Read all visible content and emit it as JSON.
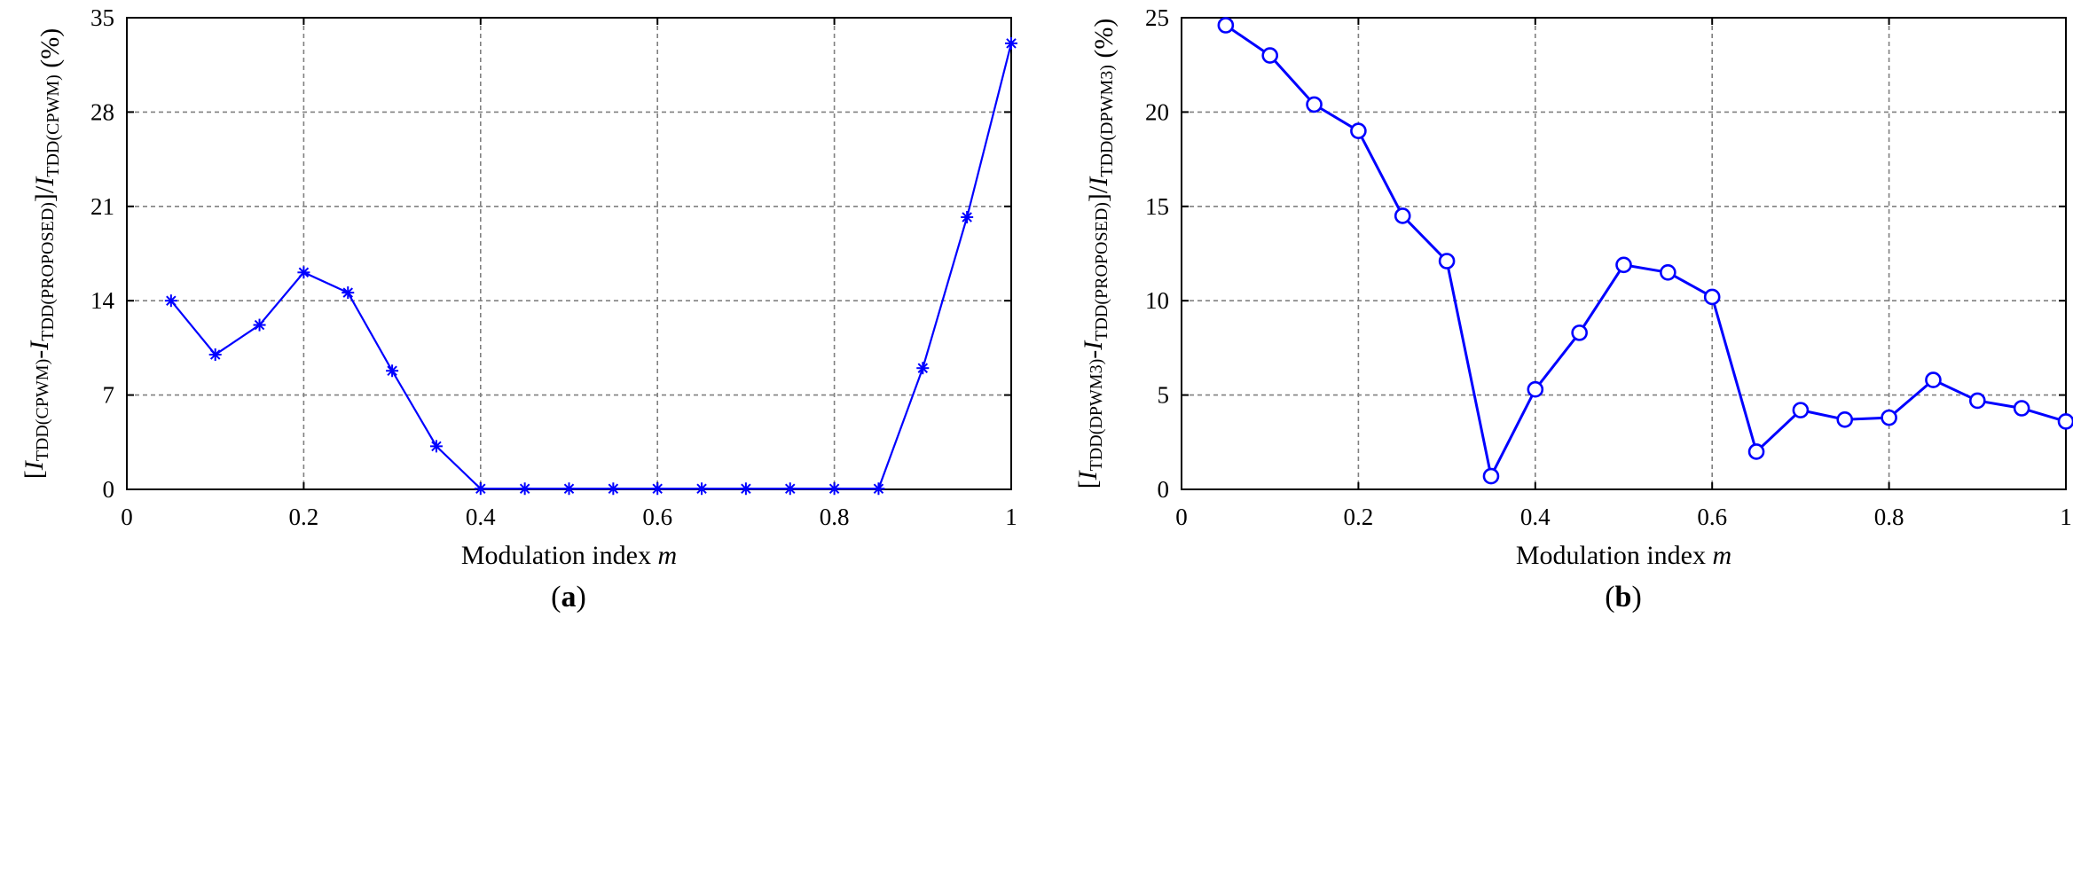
{
  "chart_data": [
    {
      "panel": "(a)",
      "panel_letter": "a",
      "type": "line",
      "marker": "asterisk",
      "xlabel": "Modulation index",
      "xlabel_var": "m",
      "ylabel": "[I_TDD(CPWM) - I_TDD(PROPOSED)] / I_TDD(CPWM) (%)",
      "ylabel_parts": {
        "I": "I",
        "sub1": "TDD(CPWM)",
        "sub2": "TDD(PROPOSED)",
        "sub3": "TDD(CPWM)",
        "unit": "(%)"
      },
      "xlim": [
        0,
        1
      ],
      "ylim": [
        0,
        35
      ],
      "grid": true,
      "xticks": [
        0,
        0.2,
        0.4,
        0.6,
        0.8,
        1
      ],
      "xtick_labels": [
        "0",
        "0.2",
        "0.4",
        "0.6",
        "0.8",
        "1"
      ],
      "yticks": [
        0,
        7,
        14,
        21,
        28,
        35
      ],
      "ytick_labels": [
        "0",
        "7",
        "14",
        "21",
        "28",
        "35"
      ],
      "color": "#0000ff",
      "x": [
        0.05,
        0.1,
        0.15,
        0.2,
        0.25,
        0.3,
        0.35,
        0.4,
        0.45,
        0.5,
        0.55,
        0.6,
        0.65,
        0.7,
        0.75,
        0.8,
        0.85,
        0.9,
        0.95,
        1.0
      ],
      "y": [
        14.0,
        10.0,
        12.2,
        16.1,
        14.6,
        8.8,
        3.2,
        0.05,
        0.05,
        0.05,
        0.05,
        0.05,
        0.05,
        0.05,
        0.05,
        0.05,
        0.05,
        9.0,
        20.2,
        33.1
      ]
    },
    {
      "panel": "(b)",
      "panel_letter": "b",
      "type": "line",
      "marker": "circle",
      "xlabel": "Modulation index",
      "xlabel_var": "m",
      "ylabel": "[I_TDD(DPWM3) - I_TDD(PROPOSED)] / I_TDD(DPWM3) (%)",
      "ylabel_parts": {
        "I": "I",
        "sub1": "TDD(DPWM3)",
        "sub2": "TDD(PROPOSED)",
        "sub3": "TDD(DPWM3)",
        "unit": "(%)"
      },
      "xlim": [
        0,
        1
      ],
      "ylim": [
        0,
        25
      ],
      "grid": true,
      "xticks": [
        0,
        0.2,
        0.4,
        0.6,
        0.8,
        1
      ],
      "xtick_labels": [
        "0",
        "0.2",
        "0.4",
        "0.6",
        "0.8",
        "1"
      ],
      "yticks": [
        0,
        5,
        10,
        15,
        20,
        25
      ],
      "ytick_labels": [
        "0",
        "5",
        "10",
        "15",
        "20",
        "25"
      ],
      "color": "#0000ff",
      "x": [
        0.05,
        0.1,
        0.15,
        0.2,
        0.25,
        0.3,
        0.35,
        0.4,
        0.45,
        0.5,
        0.55,
        0.6,
        0.65,
        0.7,
        0.75,
        0.8,
        0.85,
        0.9,
        0.95,
        1.0
      ],
      "y": [
        24.6,
        23.0,
        20.4,
        19.0,
        14.5,
        12.1,
        0.7,
        5.3,
        8.3,
        11.9,
        11.5,
        10.2,
        2.0,
        4.2,
        3.7,
        3.8,
        5.8,
        4.7,
        4.3,
        3.6
      ]
    }
  ]
}
